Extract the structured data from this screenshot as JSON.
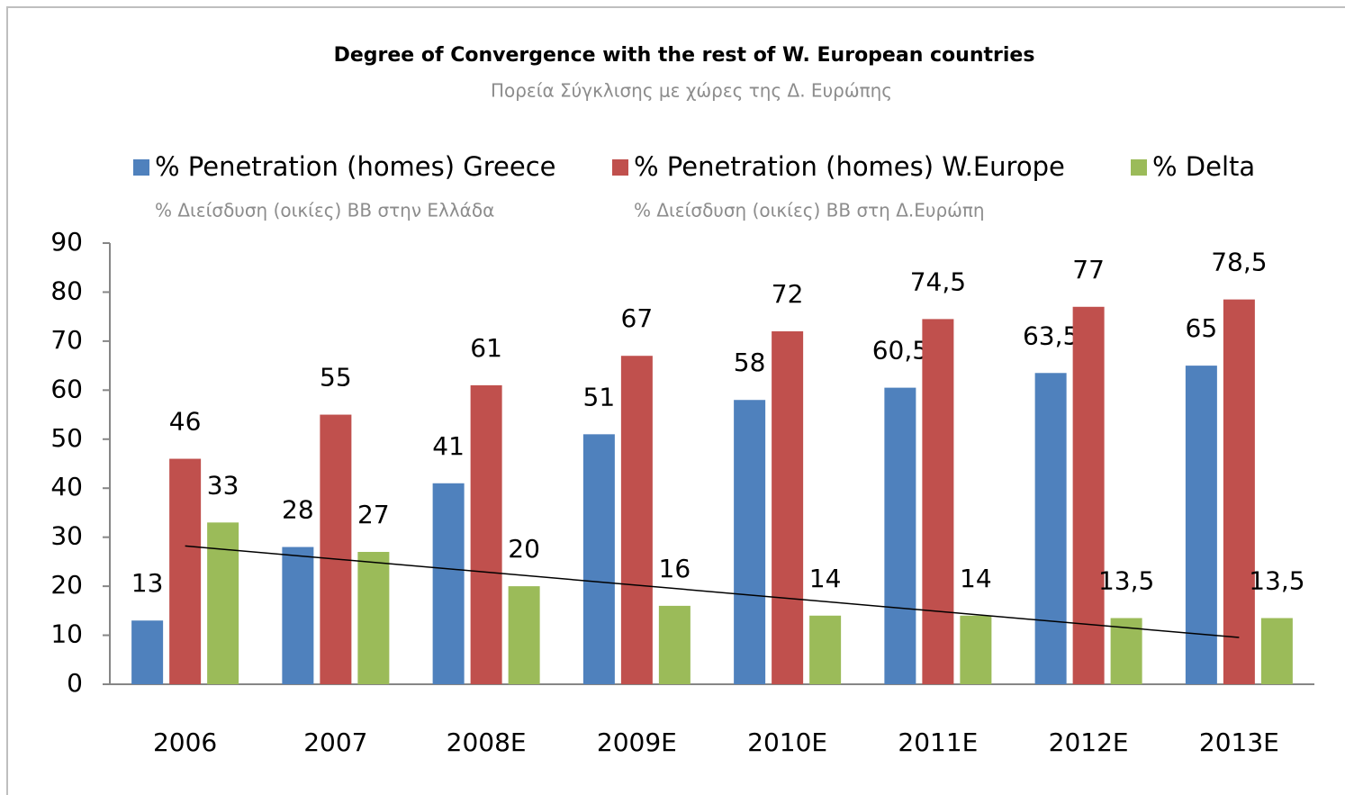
{
  "chart_data": {
    "type": "bar",
    "title": "Degree of Convergence with the rest of W. European countries",
    "subtitle": "Πορεία Σύγκλισης με χώρες της Δ. Ευρώπης",
    "categories": [
      "2006",
      "2007",
      "2008E",
      "2009E",
      "2010E",
      "2011E",
      "2012E",
      "2013E"
    ],
    "series": [
      {
        "name": "% Penetration (homes) Greece",
        "subname": "% Διείσδυση (οικίες) ΒΒ στην Ελλάδα",
        "color": "#4f81bd",
        "values": [
          13,
          28,
          41,
          51,
          58,
          60.5,
          63.5,
          65
        ],
        "value_labels": [
          "13",
          "28",
          "41",
          "51",
          "58",
          "60,5",
          "63,5",
          "65"
        ]
      },
      {
        "name": "% Penetration (homes) W.Europe",
        "subname": "% Διείσδυση (οικίες) ΒΒ στη Δ.Ευρώπη",
        "color": "#c0504d",
        "values": [
          46,
          55,
          61,
          67,
          72,
          74.5,
          77,
          78.5
        ],
        "value_labels": [
          "46",
          "55",
          "61",
          "67",
          "72",
          "74,5",
          "77",
          "78,5"
        ]
      },
      {
        "name": "% Delta",
        "color": "#9bbb59",
        "trendline": true,
        "values": [
          33,
          27,
          20,
          16,
          14,
          14,
          13.5,
          13.5
        ],
        "value_labels": [
          "33",
          "27",
          "20",
          "16",
          "14",
          "14",
          "13,5",
          "13,5"
        ]
      }
    ],
    "ylim": [
      0,
      90
    ],
    "yticks": [
      0,
      10,
      20,
      30,
      40,
      50,
      60,
      70,
      80,
      90
    ],
    "legend": "top"
  }
}
